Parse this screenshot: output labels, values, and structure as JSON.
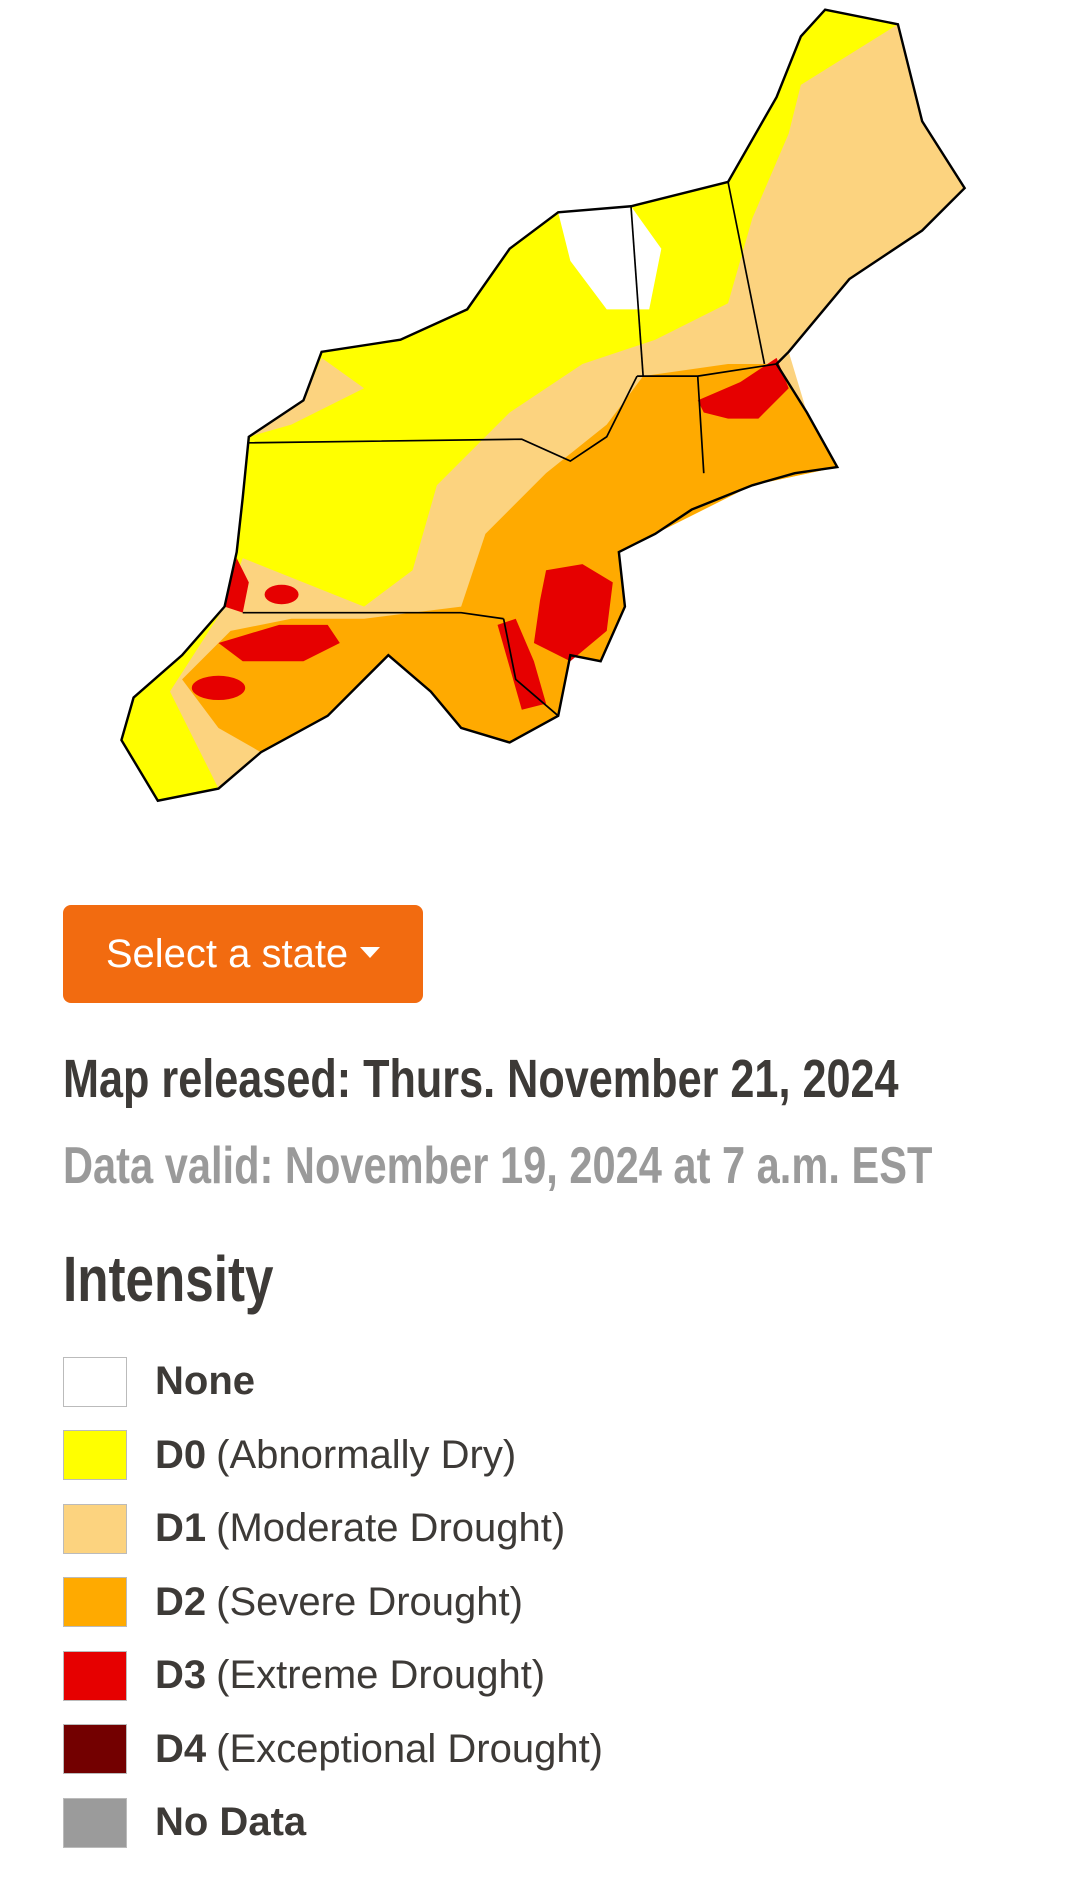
{
  "select_button": "Select a state",
  "released": "Map released: Thurs. November 21, 2024",
  "valid": "Data valid: November 19, 2024 at 7 a.m. EST",
  "legend": {
    "title": "Intensity",
    "items": [
      {
        "label": "None",
        "color": "#ffffff"
      },
      {
        "code": "D0",
        "description": "(Abnormally Dry)",
        "color": "#ffff00"
      },
      {
        "code": "D1",
        "description": "(Moderate Drought)",
        "color": "#fcd37f"
      },
      {
        "code": "D2",
        "description": "(Severe Drought)",
        "color": "#ffaa00"
      },
      {
        "code": "D3",
        "description": "(Extreme Drought)",
        "color": "#e60000"
      },
      {
        "code": "D4",
        "description": "(Exceptional Drought)",
        "color": "#730000"
      },
      {
        "label": "No Data",
        "color": "#9b9b9b"
      }
    ]
  }
}
